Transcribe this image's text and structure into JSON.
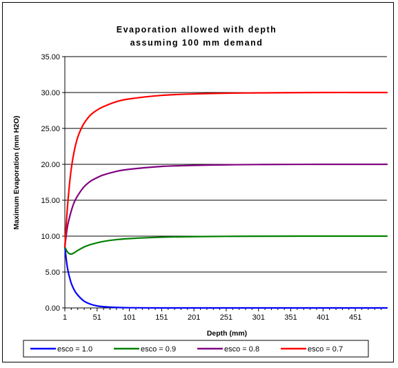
{
  "chart_data": {
    "type": "line",
    "title": [
      "Evaporation allowed with depth",
      "assuming 100 mm demand"
    ],
    "xlabel": "Depth (mm)",
    "ylabel": "Maximum Evaporation (mm H2O)",
    "xlim": [
      1,
      500
    ],
    "ylim": [
      0,
      35
    ],
    "x_ticks": [
      "1",
      "51",
      "101",
      "151",
      "201",
      "251",
      "301",
      "351",
      "401",
      "451"
    ],
    "x_tick_values": [
      1,
      51,
      101,
      151,
      201,
      251,
      301,
      351,
      401,
      451
    ],
    "y_ticks": [
      "0.00",
      "5.00",
      "10.00",
      "15.00",
      "20.00",
      "25.00",
      "30.00",
      "35.00"
    ],
    "y_tick_values": [
      0,
      5,
      10,
      15,
      20,
      25,
      30,
      35
    ],
    "grid": "horizontal",
    "legend": "bottom",
    "series": [
      {
        "name": "esco = 1.0",
        "color": "#0000ff",
        "x": [
          1,
          5,
          10,
          15,
          20,
          30,
          40,
          50,
          60,
          80,
          100,
          150,
          200,
          300,
          400,
          500
        ],
        "y": [
          8.5,
          5.6,
          3.7,
          2.6,
          1.9,
          1.0,
          0.55,
          0.3,
          0.18,
          0.07,
          0.03,
          0.0,
          0.0,
          0.0,
          0.0,
          0.0
        ]
      },
      {
        "name": "esco = 0.9",
        "color": "#008000",
        "x": [
          1,
          5,
          10,
          15,
          20,
          30,
          40,
          60,
          80,
          100,
          150,
          200,
          250,
          300,
          400,
          500
        ],
        "y": [
          8.5,
          7.8,
          7.5,
          7.65,
          7.95,
          8.45,
          8.8,
          9.25,
          9.5,
          9.65,
          9.85,
          9.93,
          9.97,
          9.99,
          10.0,
          10.0
        ]
      },
      {
        "name": "esco = 0.8",
        "color": "#800080",
        "x": [
          1,
          5,
          10,
          15,
          20,
          30,
          40,
          50,
          60,
          80,
          100,
          150,
          200,
          250,
          300,
          400,
          500
        ],
        "y": [
          8.5,
          11.3,
          13.2,
          14.6,
          15.5,
          16.8,
          17.6,
          18.1,
          18.5,
          19.0,
          19.3,
          19.7,
          19.85,
          19.93,
          19.97,
          20.0,
          20.0
        ]
      },
      {
        "name": "esco = 0.7",
        "color": "#ff0000",
        "x": [
          1,
          5,
          10,
          15,
          20,
          25,
          30,
          40,
          50,
          60,
          80,
          100,
          150,
          200,
          250,
          300,
          400,
          500
        ],
        "y": [
          8.5,
          14.0,
          18.7,
          21.6,
          23.5,
          24.7,
          25.6,
          26.8,
          27.5,
          28.0,
          28.7,
          29.1,
          29.6,
          29.8,
          29.9,
          29.95,
          30.0,
          30.0
        ]
      }
    ]
  }
}
